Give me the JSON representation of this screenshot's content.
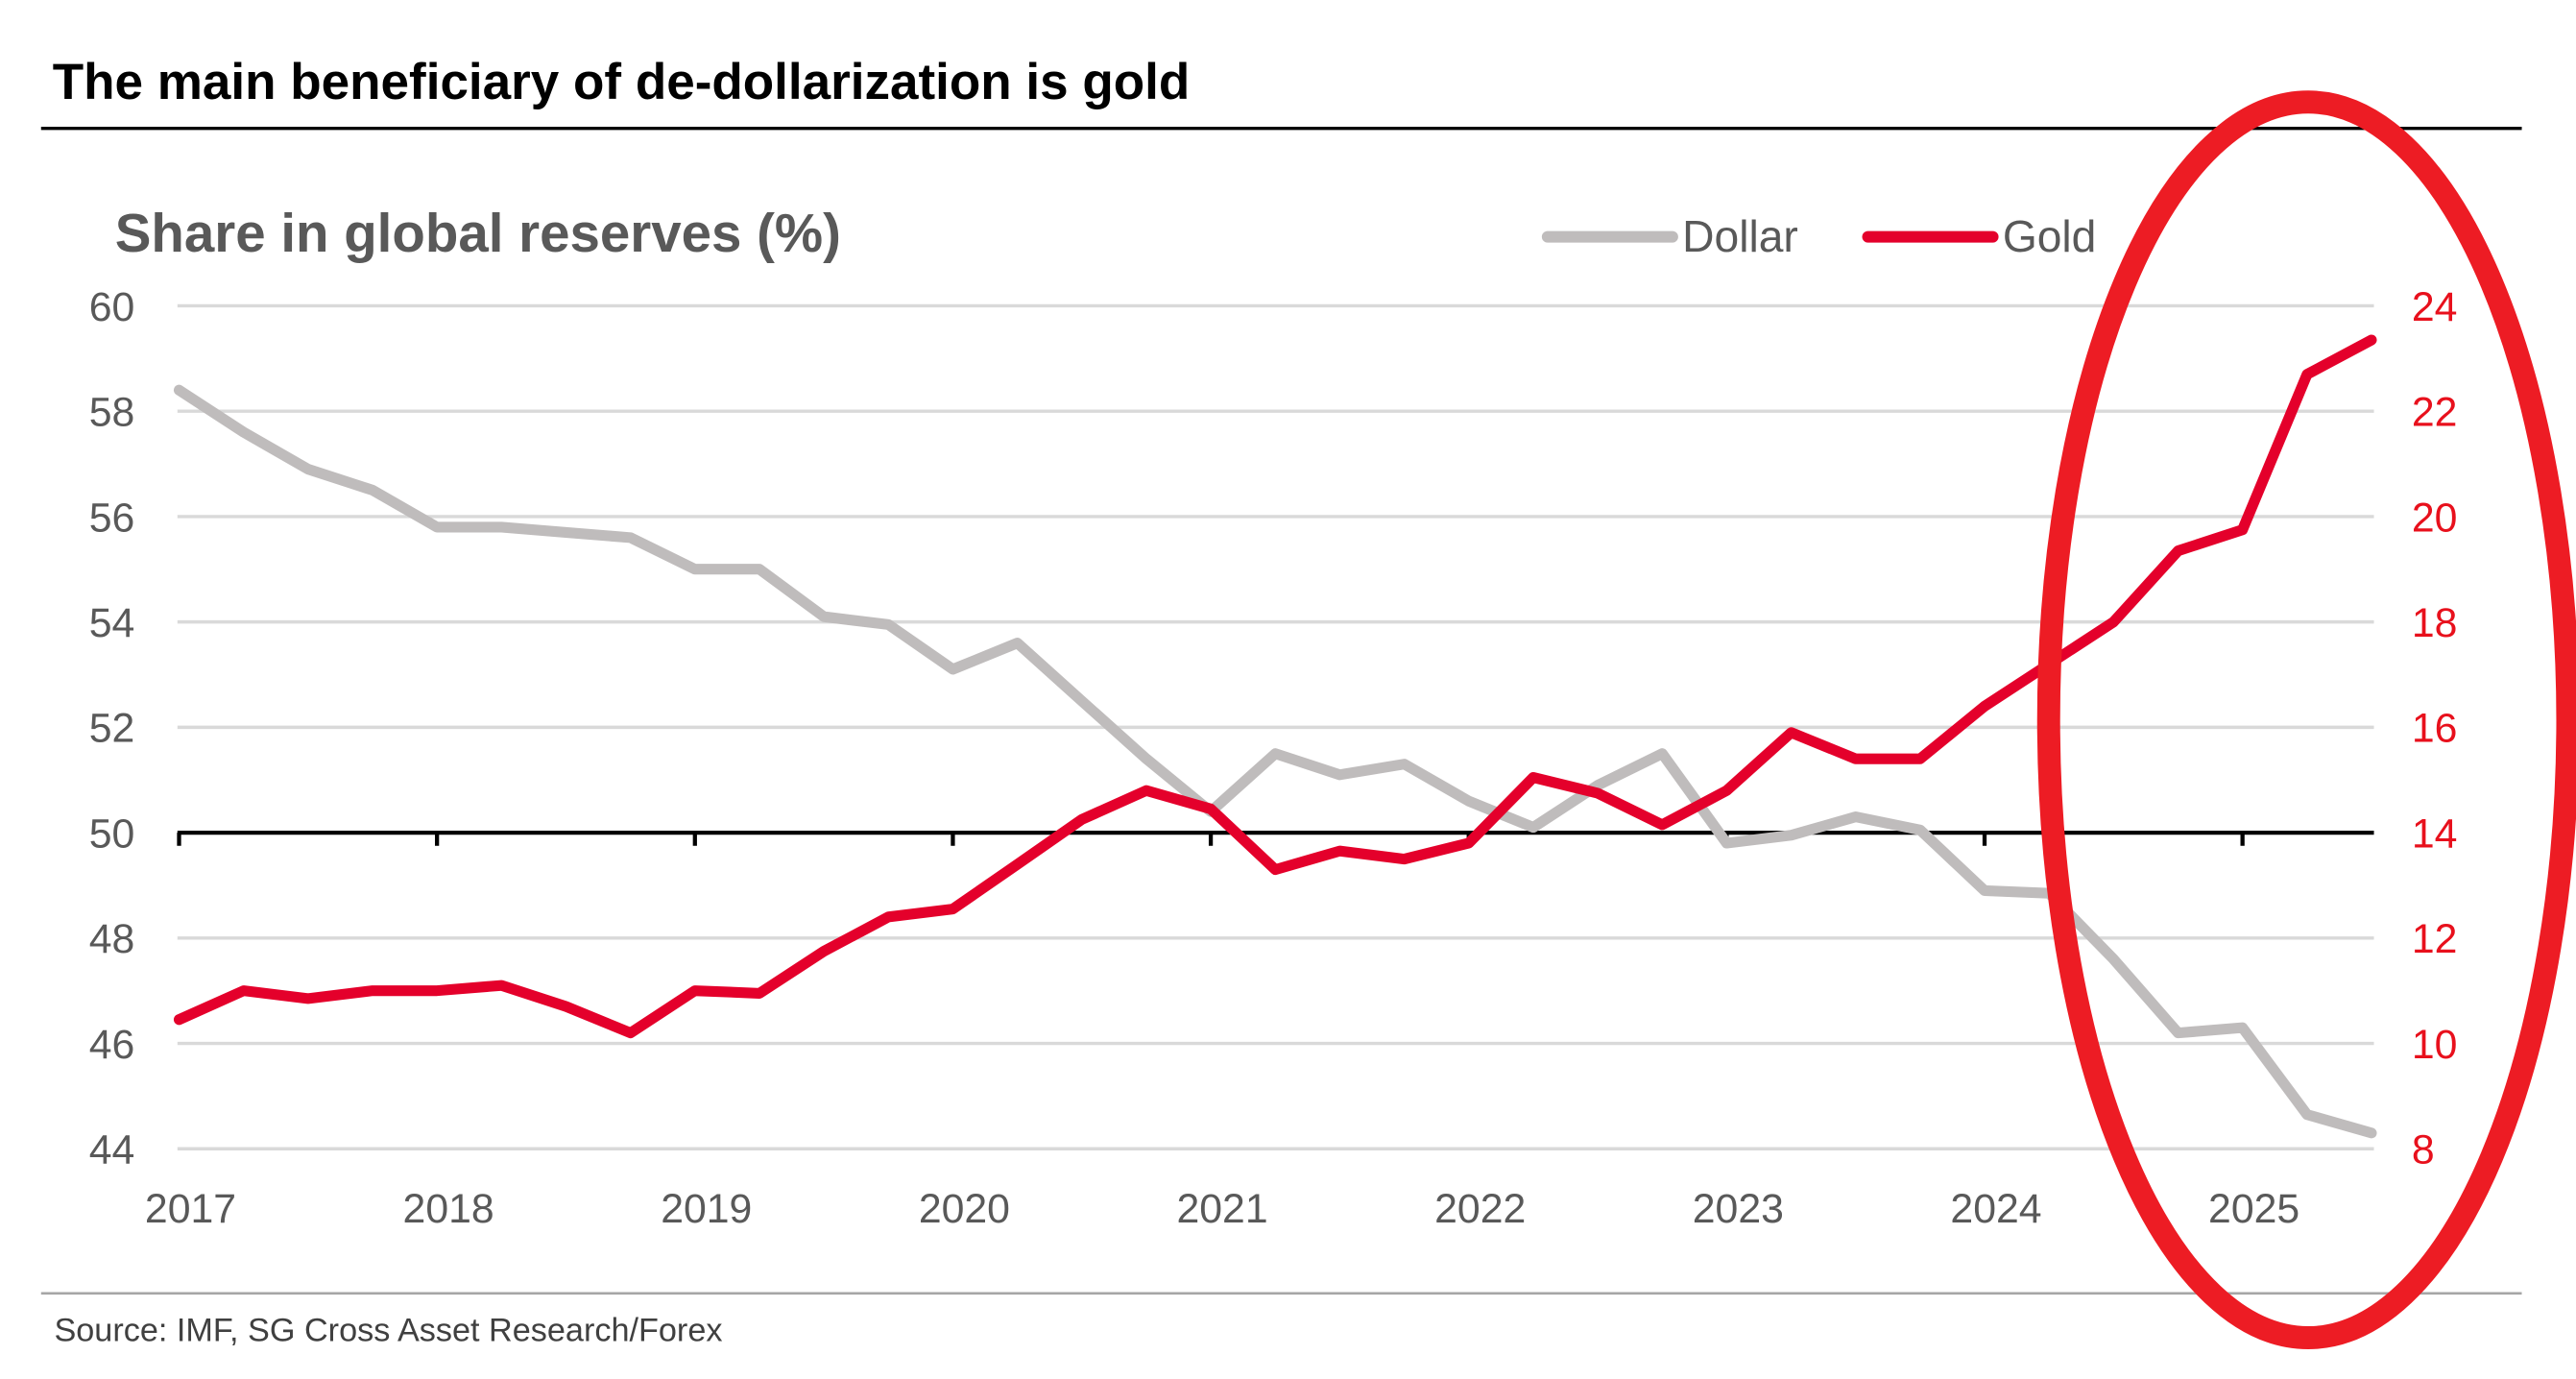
{
  "title": "The main beneficiary of de-dollarization is gold",
  "source": "Source: IMF, SG Cross Asset Research/Forex",
  "chart_data": {
    "type": "line",
    "subtitle": "Share in global reserves (%)",
    "x_ticks": [
      "2017",
      "2018",
      "2019",
      "2020",
      "2021",
      "2022",
      "2023",
      "2024",
      "2025"
    ],
    "y_left": {
      "lim": [
        44,
        60
      ],
      "ticks": [
        "60",
        "58",
        "56",
        "54",
        "52",
        "50",
        "48",
        "46",
        "44"
      ]
    },
    "y_right": {
      "lim": [
        8,
        24
      ],
      "ticks": [
        "24",
        "22",
        "20",
        "18",
        "16",
        "14",
        "12",
        "10",
        "8"
      ],
      "color": "#e8101c"
    },
    "grid": true,
    "legend_position": "top-right",
    "x": [
      2017.0,
      2017.25,
      2017.5,
      2017.75,
      2018.0,
      2018.25,
      2018.5,
      2018.75,
      2019.0,
      2019.25,
      2019.5,
      2019.75,
      2020.0,
      2020.25,
      2020.5,
      2020.75,
      2021.0,
      2021.25,
      2021.5,
      2021.75,
      2022.0,
      2022.25,
      2022.5,
      2022.75,
      2023.0,
      2023.25,
      2023.5,
      2023.75,
      2024.0,
      2024.25,
      2024.5,
      2024.75,
      2025.0,
      2025.25,
      2025.5
    ],
    "series": [
      {
        "name": "Dollar",
        "axis": "left",
        "color": "#bfbcbc",
        "values": [
          58.4,
          57.6,
          56.9,
          56.5,
          55.8,
          55.8,
          55.7,
          55.6,
          55.0,
          55.0,
          54.1,
          53.95,
          53.1,
          53.6,
          52.5,
          51.4,
          50.4,
          51.5,
          51.1,
          51.3,
          50.6,
          50.1,
          50.9,
          51.5,
          49.8,
          49.95,
          50.3,
          50.05,
          48.9,
          48.85,
          47.6,
          46.2,
          46.3,
          44.65,
          44.3
        ]
      },
      {
        "name": "Gold",
        "axis": "right",
        "color": "#e4002b",
        "values": [
          10.45,
          11.0,
          10.85,
          11.0,
          11.0,
          11.1,
          10.7,
          10.2,
          11.0,
          10.95,
          11.75,
          12.4,
          12.55,
          13.4,
          14.25,
          14.8,
          14.45,
          13.3,
          13.65,
          13.5,
          13.8,
          15.05,
          14.75,
          14.15,
          14.8,
          15.9,
          15.4,
          15.4,
          16.4,
          17.2,
          18.0,
          19.35,
          19.75,
          22.7,
          23.35
        ]
      }
    ],
    "reference_line": {
      "axis": "left",
      "value": 50
    },
    "annotation": {
      "shape": "ellipse",
      "color": "#ed1c24",
      "highlights_x_range": [
        2024.25,
        2025.5
      ]
    }
  }
}
